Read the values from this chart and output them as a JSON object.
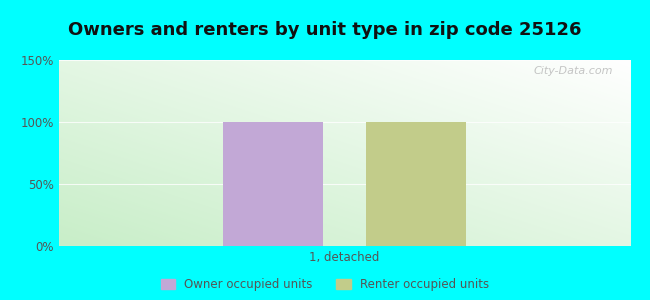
{
  "title": "Owners and renters by unit type in zip code 25126",
  "categories": [
    "1, detached"
  ],
  "owner_values": [
    100
  ],
  "renter_values": [
    100
  ],
  "owner_color": "#c2a8d6",
  "renter_color": "#c2cc8a",
  "ylim": [
    0,
    150
  ],
  "yticks": [
    0,
    50,
    100,
    150
  ],
  "ytick_labels": [
    "0%",
    "50%",
    "100%",
    "150%"
  ],
  "outer_bg": "#00ffff",
  "plot_bg_left": "#c8eec8",
  "plot_bg_right": "#f0faf8",
  "watermark": "City-Data.com",
  "legend_owner": "Owner occupied units",
  "legend_renter": "Renter occupied units",
  "title_fontsize": 13
}
